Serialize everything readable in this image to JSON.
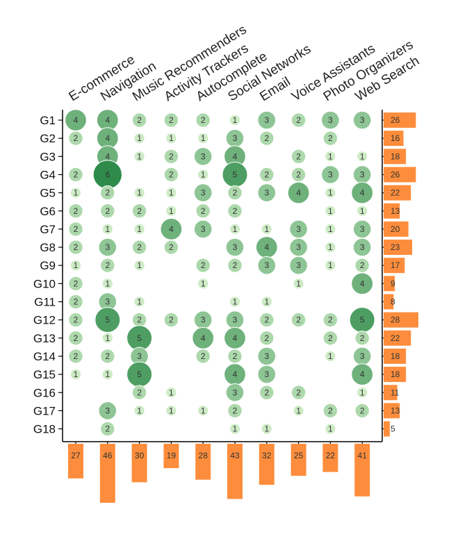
{
  "chart_data": {
    "type": "matrix-bubble",
    "columns": [
      "E-commerce",
      "Navigation",
      "Music Recommenders",
      "Activity Trackers",
      "Autocomplete",
      "Social Networks",
      "Email",
      "Voice Assistants",
      "Photo Organizers",
      "Web Search"
    ],
    "rows": [
      "G1",
      "G2",
      "G3",
      "G4",
      "G5",
      "G6",
      "G7",
      "G8",
      "G9",
      "G10",
      "G11",
      "G12",
      "G13",
      "G14",
      "G15",
      "G16",
      "G17",
      "G18"
    ],
    "values": [
      [
        4,
        4,
        2,
        2,
        2,
        1,
        3,
        2,
        3,
        3
      ],
      [
        2,
        4,
        1,
        1,
        1,
        3,
        2,
        0,
        2,
        0
      ],
      [
        0,
        4,
        1,
        2,
        3,
        4,
        0,
        2,
        1,
        1
      ],
      [
        2,
        6,
        0,
        2,
        1,
        5,
        2,
        2,
        3,
        3
      ],
      [
        1,
        2,
        1,
        1,
        3,
        2,
        3,
        4,
        1,
        4
      ],
      [
        2,
        2,
        2,
        1,
        2,
        2,
        0,
        0,
        1,
        1
      ],
      [
        2,
        1,
        1,
        4,
        3,
        1,
        1,
        3,
        1,
        3
      ],
      [
        2,
        3,
        2,
        2,
        0,
        3,
        4,
        3,
        1,
        3
      ],
      [
        1,
        2,
        1,
        0,
        2,
        2,
        3,
        3,
        1,
        2
      ],
      [
        2,
        1,
        0,
        0,
        1,
        0,
        0,
        1,
        0,
        4
      ],
      [
        2,
        3,
        1,
        0,
        0,
        1,
        1,
        0,
        0,
        0
      ],
      [
        2,
        5,
        2,
        2,
        3,
        3,
        2,
        2,
        2,
        5
      ],
      [
        2,
        1,
        5,
        0,
        4,
        4,
        2,
        0,
        2,
        2
      ],
      [
        2,
        2,
        3,
        0,
        2,
        2,
        3,
        0,
        1,
        3
      ],
      [
        1,
        1,
        5,
        0,
        0,
        4,
        3,
        0,
        0,
        4
      ],
      [
        0,
        0,
        2,
        1,
        0,
        3,
        2,
        2,
        0,
        1
      ],
      [
        0,
        3,
        1,
        1,
        1,
        2,
        0,
        1,
        2,
        2
      ],
      [
        0,
        2,
        0,
        0,
        0,
        1,
        1,
        0,
        1,
        0
      ]
    ],
    "row_totals": [
      26,
      16,
      18,
      26,
      22,
      13,
      20,
      23,
      17,
      9,
      8,
      28,
      22,
      18,
      18,
      11,
      13,
      5
    ],
    "column_totals": [
      27,
      46,
      30,
      19,
      28,
      43,
      32,
      25,
      22,
      41
    ],
    "colors": {
      "bubble_light": "#cdebc5",
      "bubble_dark": "#2e8b4a",
      "bar": "#fd8d3c",
      "axis": "#000000"
    }
  }
}
